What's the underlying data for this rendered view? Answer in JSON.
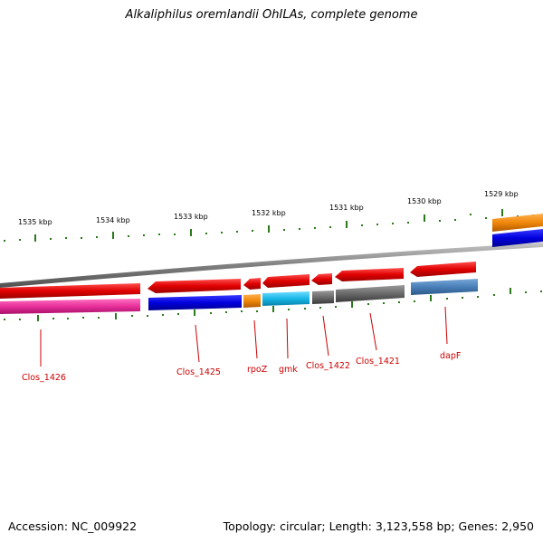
{
  "title": "Alkaliphilus oremlandii OhILAs, complete genome",
  "footer": {
    "accession": "Accession: NC_009922",
    "summary": "Topology: circular; Length: 3,123,558 bp; Genes: 2,950"
  },
  "scale_labels": [
    "1535 kbp",
    "1534 kbp",
    "1533 kbp",
    "1532 kbp",
    "1531 kbp",
    "1530 kbp",
    "1529 kbp"
  ],
  "gene_labels": [
    "Clos_1426",
    "Clos_1425",
    "rpoZ",
    "gmk",
    "Clos_1422",
    "Clos_1421",
    "dapF"
  ],
  "colors": {
    "cds": "#e00000",
    "backbone": "#808080",
    "magenta": "#e8309a",
    "blue": "#0000dd",
    "orange": "#f0880a",
    "cyan": "#18b8e8",
    "gray": "#6a6a6a",
    "steelblue": "#4a7fb8",
    "tick": "#2a7a1a",
    "label": "#cc0000"
  }
}
